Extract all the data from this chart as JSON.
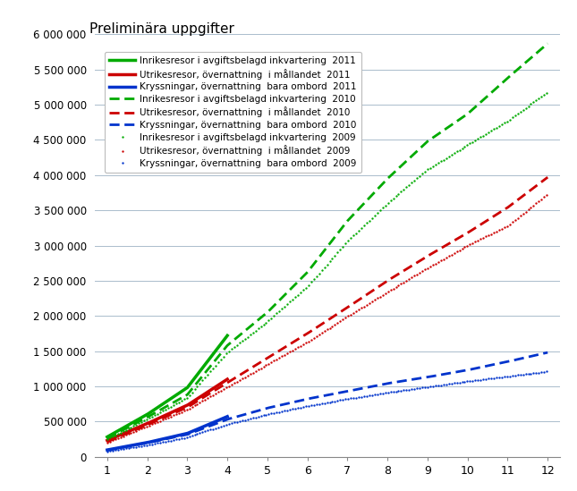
{
  "title": "Preliminära uppgifter",
  "ylim": [
    0,
    6000000
  ],
  "yticks": [
    0,
    500000,
    1000000,
    1500000,
    2000000,
    2500000,
    3000000,
    3500000,
    4000000,
    4500000,
    5000000,
    5500000,
    6000000
  ],
  "xticks": [
    1,
    2,
    3,
    4,
    5,
    6,
    7,
    8,
    9,
    10,
    11,
    12
  ],
  "months": [
    1,
    2,
    3,
    4,
    5,
    6,
    7,
    8,
    9,
    10,
    11,
    12
  ],
  "series": [
    {
      "label": "Inrikesresor i avgiftsbelagd inkvartering  2011",
      "color": "#00aa00",
      "linestyle": "solid",
      "linewidth": 2.5,
      "data": [
        280000,
        600000,
        980000,
        1720000,
        null,
        null,
        null,
        null,
        null,
        null,
        null,
        null
      ]
    },
    {
      "label": "Utrikesresor, övernattning  i mållandet  2011",
      "color": "#cc0000",
      "linestyle": "solid",
      "linewidth": 2.5,
      "data": [
        230000,
        470000,
        730000,
        1100000,
        null,
        null,
        null,
        null,
        null,
        null,
        null,
        null
      ]
    },
    {
      "label": "Kryssningar, övernattning  bara ombord  2011",
      "color": "#0033cc",
      "linestyle": "solid",
      "linewidth": 2.5,
      "data": [
        95000,
        200000,
        330000,
        570000,
        null,
        null,
        null,
        null,
        null,
        null,
        null,
        null
      ]
    },
    {
      "label": "Inrikesresor i avgiftsbelagd inkvartering  2010",
      "color": "#00aa00",
      "linestyle": "dashed",
      "linewidth": 2.0,
      "data": [
        260000,
        560000,
        880000,
        1580000,
        2050000,
        2620000,
        3350000,
        3950000,
        4480000,
        4870000,
        5380000,
        5870000
      ]
    },
    {
      "label": "Utrikesresor, övernattning  i mållandet  2010",
      "color": "#cc0000",
      "linestyle": "dashed",
      "linewidth": 2.0,
      "data": [
        210000,
        450000,
        700000,
        1050000,
        1400000,
        1750000,
        2120000,
        2500000,
        2850000,
        3180000,
        3540000,
        3970000
      ]
    },
    {
      "label": "Kryssningar, övernattning  bara ombord  2010",
      "color": "#0033cc",
      "linestyle": "dashed",
      "linewidth": 2.0,
      "data": [
        90000,
        195000,
        315000,
        530000,
        690000,
        820000,
        930000,
        1040000,
        1130000,
        1230000,
        1350000,
        1480000
      ]
    },
    {
      "label": "Inrikesresor i avgiftsbelagd inkvartering  2009",
      "color": "#00aa00",
      "linestyle": "dotted",
      "linewidth": 1.5,
      "data": [
        250000,
        530000,
        840000,
        1480000,
        1920000,
        2420000,
        3060000,
        3600000,
        4080000,
        4430000,
        4770000,
        5180000
      ]
    },
    {
      "label": "Utrikesresor, övernattning  i mållandet  2009",
      "color": "#cc0000",
      "linestyle": "dotted",
      "linewidth": 1.5,
      "data": [
        200000,
        430000,
        670000,
        990000,
        1310000,
        1630000,
        1990000,
        2340000,
        2680000,
        3000000,
        3280000,
        3730000
      ]
    },
    {
      "label": "Kryssningar, övernattning  bara ombord  2009",
      "color": "#0033cc",
      "linestyle": "dotted",
      "linewidth": 1.5,
      "data": [
        75000,
        165000,
        275000,
        460000,
        600000,
        720000,
        820000,
        910000,
        990000,
        1070000,
        1140000,
        1210000
      ]
    }
  ],
  "grid_color": "#aabccc",
  "background_color": "#ffffff",
  "legend_fontsize": 7.5,
  "title_fontsize": 11
}
